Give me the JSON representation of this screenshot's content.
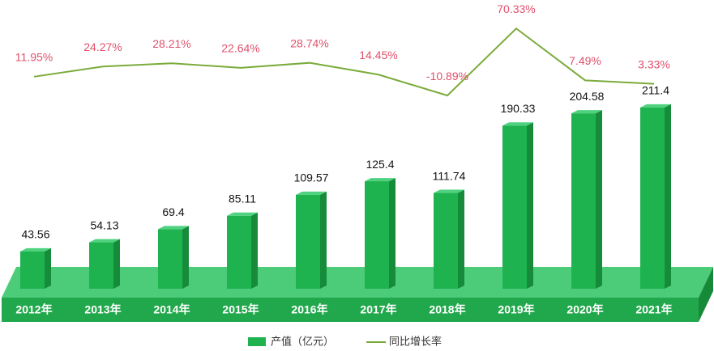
{
  "chart_data": {
    "type": "bar-line",
    "categories": [
      "2012年",
      "2013年",
      "2014年",
      "2015年",
      "2016年",
      "2017年",
      "2018年",
      "2019年",
      "2020年",
      "2021年"
    ],
    "series": [
      {
        "name": "产值（亿元）",
        "type": "bar",
        "color": "#1fb350",
        "values": [
          43.56,
          54.13,
          69.4,
          85.11,
          109.57,
          125.4,
          111.74,
          190.33,
          204.58,
          211.4
        ]
      },
      {
        "name": "同比增长率",
        "type": "line",
        "color": "#7aab3a",
        "values": [
          11.95,
          24.27,
          28.21,
          22.64,
          28.74,
          14.45,
          -10.89,
          70.33,
          7.49,
          3.33
        ],
        "value_labels": [
          "11.95%",
          "24.27%",
          "28.21%",
          "22.64%",
          "28.74%",
          "14.45%",
          "-10.89%",
          "70.33%",
          "7.49%",
          "3.33%"
        ]
      }
    ]
  }
}
